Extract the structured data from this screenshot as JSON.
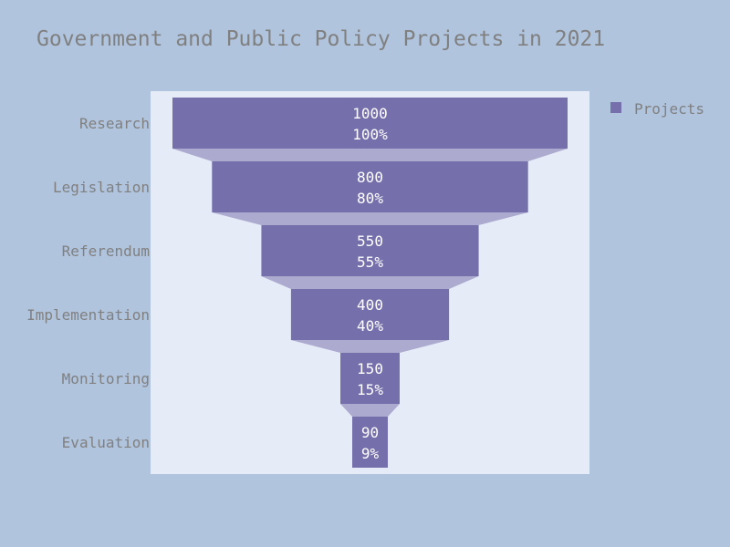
{
  "chart_data": {
    "type": "funnel",
    "title": "Government and Public Policy Projects in 2021",
    "categories": [
      "Research",
      "Legislation",
      "Referendum",
      "Implementation",
      "Monitoring",
      "Evaluation"
    ],
    "series": [
      {
        "name": "Projects",
        "values": [
          1000,
          800,
          550,
          400,
          150,
          90
        ],
        "percent_labels": [
          "100%",
          "80%",
          "55%",
          "40%",
          "15%",
          "9%"
        ]
      }
    ],
    "legend": "top-right",
    "colors": {
      "background": "#b0c4de",
      "plot_background": "#e6ecf7",
      "bar": "#7570ab",
      "connector": "#adaad0",
      "text": "#808080",
      "label": "#ffffff"
    }
  }
}
